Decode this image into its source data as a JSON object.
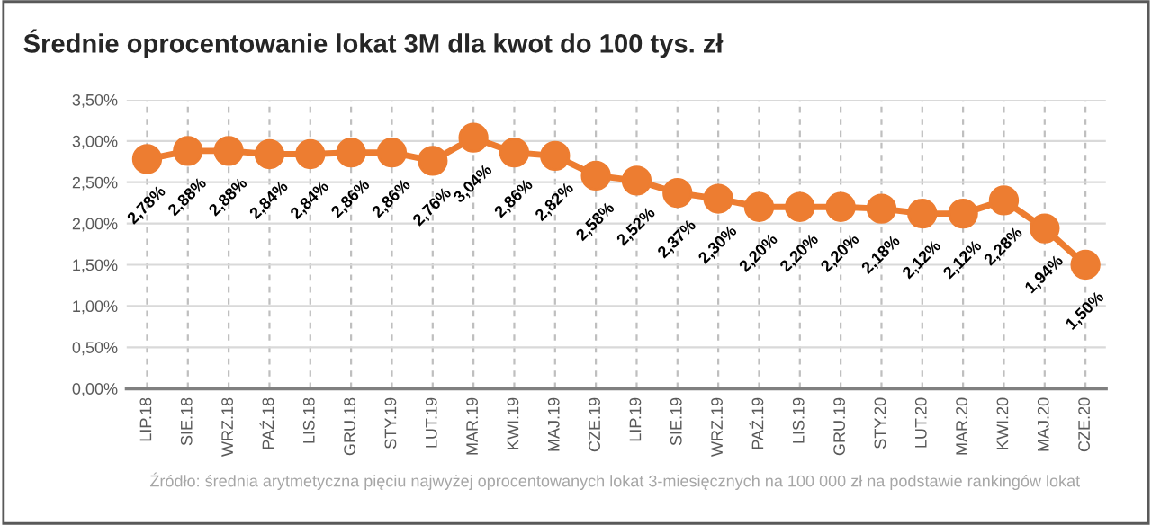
{
  "chart_data": {
    "type": "line",
    "title": "Średnie oprocentowanie lokat 3M dla kwot do 100 tys. zł",
    "categories": [
      "LIP.18",
      "SIE.18",
      "WRZ.18",
      "PAŹ.18",
      "LIS.18",
      "GRU.18",
      "STY.19",
      "LUT.19",
      "MAR.19",
      "KWI.19",
      "MAJ.19",
      "CZE.19",
      "LIP.19",
      "SIE.19",
      "WRZ.19",
      "PAŹ.19",
      "LIS.19",
      "GRU.19",
      "STY.20",
      "LUT.20",
      "MAR.20",
      "KWI.20",
      "MAJ.20",
      "CZE.20"
    ],
    "series": [
      {
        "color": "#ed7d31",
        "values": [
          2.78,
          2.88,
          2.88,
          2.84,
          2.84,
          2.86,
          2.86,
          2.76,
          3.04,
          2.86,
          2.82,
          2.58,
          2.52,
          2.37,
          2.3,
          2.2,
          2.2,
          2.2,
          2.18,
          2.12,
          2.12,
          2.28,
          1.94,
          1.5
        ],
        "value_labels": [
          "2,78%",
          "2,88%",
          "2,88%",
          "2,84%",
          "2,84%",
          "2,86%",
          "2,86%",
          "2,76%",
          "3,04%",
          "2,86%",
          "2,82%",
          "2,58%",
          "2,52%",
          "2,37%",
          "2,30%",
          "2,20%",
          "2,20%",
          "2,20%",
          "2,18%",
          "2,12%",
          "2,12%",
          "2,28%",
          "1,94%",
          "1,50%"
        ]
      }
    ],
    "ylim": [
      0,
      3.5
    ],
    "yticks": [
      {
        "value": 0,
        "label": "0,00%"
      },
      {
        "value": 0.5,
        "label": "0,50%"
      },
      {
        "value": 1,
        "label": "1,00%"
      },
      {
        "value": 1.5,
        "label": "1,50%"
      },
      {
        "value": 2,
        "label": "2,00%"
      },
      {
        "value": 2.5,
        "label": "2,50%"
      },
      {
        "value": 3,
        "label": "3,00%"
      },
      {
        "value": 3.5,
        "label": "3,50%"
      }
    ],
    "grid": true,
    "marker": "circle",
    "line_style": "solid",
    "legend": false,
    "annotations": [
      "Źródło: średnia arytmetyczna pięciu najwyżej oprocentowanych lokat 3-miesięcznych na 100 000 zł na podstawie rankingów lokat"
    ]
  }
}
